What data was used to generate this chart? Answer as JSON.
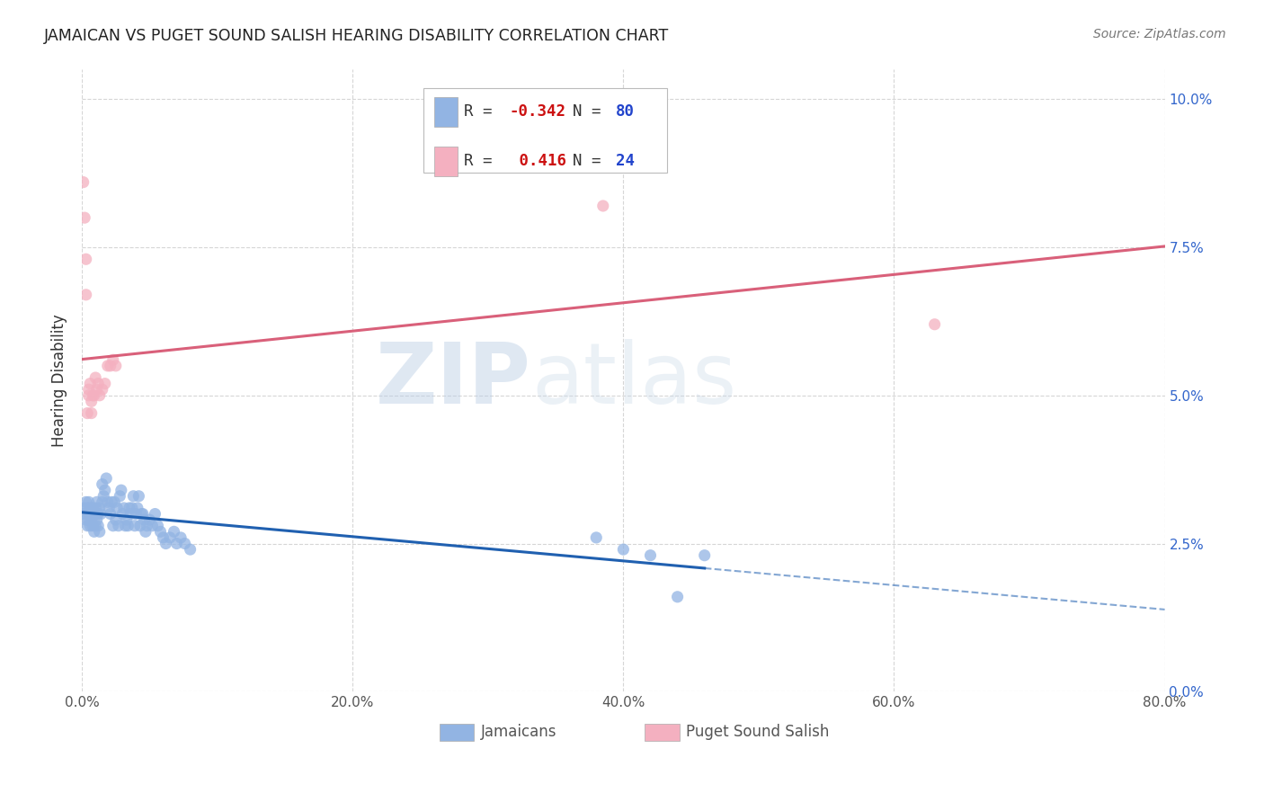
{
  "title": "JAMAICAN VS PUGET SOUND SALISH HEARING DISABILITY CORRELATION CHART",
  "source": "Source: ZipAtlas.com",
  "xlim": [
    0.0,
    0.8
  ],
  "ylim": [
    0.0,
    0.105
  ],
  "ylabel": "Hearing Disability",
  "jamaican_color": "#92b4e3",
  "puget_color": "#f4b0c0",
  "blue_line_color": "#2060b0",
  "pink_line_color": "#d9607a",
  "watermark_zip": "ZIP",
  "watermark_atlas": "atlas",
  "background_color": "#ffffff",
  "grid_color": "#cccccc",
  "blue_x": [
    0.001,
    0.002,
    0.003,
    0.003,
    0.004,
    0.004,
    0.005,
    0.005,
    0.005,
    0.006,
    0.006,
    0.007,
    0.007,
    0.008,
    0.008,
    0.009,
    0.009,
    0.01,
    0.01,
    0.01,
    0.011,
    0.011,
    0.012,
    0.012,
    0.013,
    0.013,
    0.014,
    0.015,
    0.015,
    0.016,
    0.017,
    0.018,
    0.019,
    0.02,
    0.021,
    0.022,
    0.023,
    0.024,
    0.025,
    0.026,
    0.027,
    0.028,
    0.029,
    0.03,
    0.031,
    0.032,
    0.033,
    0.034,
    0.035,
    0.036,
    0.037,
    0.038,
    0.039,
    0.04,
    0.041,
    0.042,
    0.043,
    0.044,
    0.045,
    0.046,
    0.047,
    0.048,
    0.05,
    0.052,
    0.054,
    0.056,
    0.058,
    0.06,
    0.062,
    0.065,
    0.068,
    0.07,
    0.073,
    0.076,
    0.08,
    0.38,
    0.4,
    0.42,
    0.44,
    0.46
  ],
  "blue_y": [
    0.031,
    0.03,
    0.032,
    0.029,
    0.031,
    0.028,
    0.03,
    0.032,
    0.029,
    0.028,
    0.031,
    0.03,
    0.029,
    0.031,
    0.028,
    0.03,
    0.027,
    0.031,
    0.03,
    0.028,
    0.032,
    0.029,
    0.03,
    0.028,
    0.031,
    0.027,
    0.03,
    0.035,
    0.032,
    0.033,
    0.034,
    0.036,
    0.032,
    0.031,
    0.03,
    0.032,
    0.028,
    0.032,
    0.029,
    0.031,
    0.028,
    0.033,
    0.034,
    0.03,
    0.031,
    0.028,
    0.029,
    0.028,
    0.031,
    0.03,
    0.031,
    0.033,
    0.028,
    0.03,
    0.031,
    0.033,
    0.028,
    0.03,
    0.03,
    0.029,
    0.027,
    0.028,
    0.029,
    0.028,
    0.03,
    0.028,
    0.027,
    0.026,
    0.025,
    0.026,
    0.027,
    0.025,
    0.026,
    0.025,
    0.024,
    0.026,
    0.024,
    0.023,
    0.016,
    0.023
  ],
  "pink_x": [
    0.001,
    0.002,
    0.003,
    0.003,
    0.004,
    0.005,
    0.005,
    0.006,
    0.007,
    0.007,
    0.008,
    0.009,
    0.01,
    0.011,
    0.012,
    0.013,
    0.015,
    0.017,
    0.019,
    0.021,
    0.023,
    0.025,
    0.385,
    0.63
  ],
  "pink_y": [
    0.086,
    0.08,
    0.073,
    0.067,
    0.047,
    0.051,
    0.05,
    0.052,
    0.049,
    0.047,
    0.05,
    0.05,
    0.053,
    0.051,
    0.052,
    0.05,
    0.051,
    0.052,
    0.055,
    0.055,
    0.056,
    0.055,
    0.082,
    0.062
  ]
}
